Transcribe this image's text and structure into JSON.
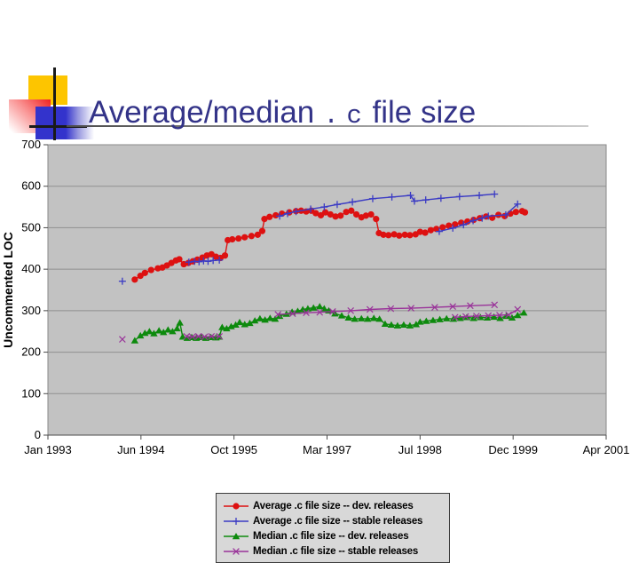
{
  "slide": {
    "title": {
      "part1": "Average/median",
      "part2": ".c",
      "part3": "file size"
    },
    "title_color": "#333388"
  },
  "chart": {
    "ylabel": "Uncommented LOC",
    "y_ticks": [
      "0",
      "100",
      "200",
      "300",
      "400",
      "500",
      "600",
      "700"
    ],
    "x_ticks": [
      "Jan 1993",
      "Jun 1994",
      "Oct 1995",
      "Mar 1997",
      "Jul 1998",
      "Dec 1999",
      "Apr 2001"
    ],
    "plot_bg": "#c2c2c2",
    "grid_color": "#8f8f8f",
    "border_color": "#8a8a8a",
    "axis_color": "#4a4a4a",
    "legend": {
      "items": [
        {
          "label": "Average .c file size -- dev. releases",
          "color": "#dd1111",
          "marker": "circle"
        },
        {
          "label": "Average .c file size -- stable releases",
          "color": "#3b3bc4",
          "marker": "plus"
        },
        {
          "label": "Median .c file size -- dev. releases",
          "color": "#0d8a0d",
          "marker": "triangle"
        },
        {
          "label": "Median .c file size -- stable releases",
          "color": "#993399",
          "marker": "x"
        }
      ]
    }
  },
  "chart_data": {
    "type": "line",
    "x_axis": {
      "unit": "months since Jan 1993",
      "min": 0,
      "max": 99,
      "tick_labels": [
        "Jan 1993",
        "Jun 1994",
        "Oct 1995",
        "Mar 1997",
        "Jul 1998",
        "Dec 1999",
        "Apr 2001"
      ]
    },
    "y_axis": {
      "label": "Uncommented LOC",
      "min": 0,
      "max": 700,
      "grid_step": 100
    },
    "series": [
      {
        "name": "Average .c file size -- dev. releases",
        "color": "#dd1111",
        "marker": "circle",
        "segments": [
          [
            [
              15.4,
              375
            ],
            [
              16.4,
              384
            ],
            [
              17.2,
              391
            ],
            [
              18.3,
              398
            ],
            [
              19.5,
              402
            ],
            [
              20.3,
              404
            ],
            [
              21.1,
              409
            ],
            [
              21.9,
              415
            ],
            [
              22.7,
              421
            ],
            [
              23.3,
              424
            ],
            [
              24.1,
              412
            ],
            [
              24.9,
              415
            ],
            [
              25.7,
              419
            ],
            [
              26.5,
              423
            ],
            [
              27.4,
              428
            ],
            [
              28.2,
              433
            ],
            [
              29.0,
              436
            ],
            [
              29.8,
              430
            ],
            [
              30.6,
              427
            ],
            [
              31.4,
              433
            ],
            [
              31.9,
              470
            ],
            [
              32.7,
              472
            ],
            [
              33.8,
              474
            ],
            [
              34.9,
              477
            ],
            [
              36.1,
              480
            ],
            [
              37.2,
              483
            ],
            [
              38.0,
              492
            ],
            [
              38.4,
              521
            ],
            [
              39.3,
              526
            ],
            [
              40.4,
              530
            ],
            [
              41.5,
              534
            ],
            [
              42.8,
              537
            ],
            [
              44.0,
              540
            ],
            [
              44.9,
              541
            ],
            [
              45.8,
              539
            ],
            [
              46.7,
              541
            ],
            [
              47.5,
              535
            ],
            [
              48.4,
              530
            ],
            [
              49.2,
              537
            ],
            [
              50.1,
              532
            ],
            [
              51.0,
              527
            ],
            [
              51.9,
              529
            ],
            [
              52.9,
              538
            ],
            [
              53.8,
              541
            ],
            [
              54.7,
              532
            ],
            [
              55.6,
              525
            ],
            [
              56.4,
              529
            ],
            [
              57.3,
              532
            ],
            [
              58.2,
              521
            ],
            [
              58.7,
              487
            ],
            [
              59.5,
              483
            ],
            [
              60.4,
              482
            ],
            [
              61.4,
              484
            ],
            [
              62.3,
              481
            ],
            [
              63.3,
              483
            ],
            [
              64.2,
              482
            ],
            [
              65.2,
              484
            ],
            [
              66.0,
              490
            ],
            [
              66.9,
              488
            ],
            [
              67.9,
              494
            ],
            [
              68.9,
              497
            ],
            [
              70.0,
              501
            ],
            [
              71.1,
              505
            ],
            [
              72.2,
              508
            ],
            [
              73.3,
              512
            ],
            [
              74.4,
              515
            ],
            [
              75.5,
              519
            ],
            [
              76.6,
              523
            ],
            [
              77.7,
              527
            ],
            [
              78.8,
              524
            ],
            [
              79.9,
              531
            ],
            [
              81.0,
              528
            ],
            [
              82.0,
              534
            ],
            [
              83.0,
              538
            ],
            [
              84.1,
              540
            ],
            [
              84.6,
              537
            ]
          ]
        ]
      },
      {
        "name": "Average .c file size -- stable releases",
        "color": "#3b3bc4",
        "marker": "plus",
        "segments": [
          [
            [
              13.2,
              371
            ]
          ],
          [
            [
              25.0,
              417
            ],
            [
              26.0,
              419
            ],
            [
              26.8,
              418
            ],
            [
              27.6,
              420
            ],
            [
              28.4,
              419
            ],
            [
              29.3,
              421
            ],
            [
              30.4,
              422
            ]
          ],
          [
            [
              41.1,
              528
            ],
            [
              42.5,
              534
            ],
            [
              44.0,
              539
            ],
            [
              46.6,
              545
            ],
            [
              49.0,
              550
            ],
            [
              51.3,
              556
            ],
            [
              54.0,
              562
            ],
            [
              57.6,
              570
            ],
            [
              61.0,
              574
            ],
            [
              64.3,
              578
            ],
            [
              65.0,
              564
            ],
            [
              67.0,
              567
            ],
            [
              69.7,
              571
            ],
            [
              73.0,
              575
            ],
            [
              76.5,
              578
            ],
            [
              79.2,
              581
            ]
          ],
          [
            [
              69.4,
              491
            ],
            [
              71.8,
              499
            ],
            [
              73.7,
              507
            ],
            [
              75.4,
              517
            ],
            [
              77.0,
              523
            ],
            [
              78.1,
              528
            ],
            [
              81.2,
              531
            ],
            [
              83.3,
              557
            ]
          ]
        ]
      },
      {
        "name": "Median .c file size -- dev. releases",
        "color": "#0d8a0d",
        "marker": "triangle",
        "segments": [
          [
            [
              15.4,
              228
            ],
            [
              16.4,
              240
            ],
            [
              17.2,
              246
            ],
            [
              18.0,
              250
            ],
            [
              18.8,
              245
            ],
            [
              19.7,
              252
            ],
            [
              20.5,
              248
            ],
            [
              21.3,
              254
            ],
            [
              22.1,
              250
            ],
            [
              22.9,
              257
            ],
            [
              23.4,
              271
            ],
            [
              23.9,
              237
            ],
            [
              24.7,
              234
            ],
            [
              25.5,
              236
            ],
            [
              26.3,
              234
            ],
            [
              27.2,
              236
            ],
            [
              28.0,
              234
            ],
            [
              28.9,
              236
            ],
            [
              29.8,
              235
            ],
            [
              30.4,
              237
            ],
            [
              30.9,
              260
            ],
            [
              31.7,
              257
            ],
            [
              32.5,
              262
            ],
            [
              33.3,
              266
            ],
            [
              34.0,
              272
            ],
            [
              34.9,
              267
            ],
            [
              35.8,
              270
            ],
            [
              36.7,
              276
            ],
            [
              37.6,
              281
            ],
            [
              38.5,
              278
            ],
            [
              39.4,
              282
            ],
            [
              40.3,
              280
            ],
            [
              41.1,
              287
            ],
            [
              42.3,
              292
            ],
            [
              43.3,
              297
            ],
            [
              44.3,
              299
            ],
            [
              45.2,
              303
            ],
            [
              46.1,
              305
            ],
            [
              47.1,
              307
            ],
            [
              48.2,
              310
            ],
            [
              49.0,
              305
            ],
            [
              49.8,
              300
            ],
            [
              50.9,
              293
            ],
            [
              52.1,
              288
            ],
            [
              53.3,
              283
            ],
            [
              54.4,
              280
            ],
            [
              55.6,
              281
            ],
            [
              56.7,
              280
            ],
            [
              57.8,
              282
            ],
            [
              58.8,
              280
            ],
            [
              59.8,
              268
            ],
            [
              60.9,
              266
            ],
            [
              62.0,
              264
            ],
            [
              63.1,
              266
            ],
            [
              64.2,
              264
            ],
            [
              65.3,
              267
            ],
            [
              66.0,
              273
            ],
            [
              67.1,
              275
            ],
            [
              68.3,
              277
            ],
            [
              69.5,
              279
            ],
            [
              70.7,
              281
            ],
            [
              71.9,
              280
            ],
            [
              73.1,
              282
            ],
            [
              74.3,
              284
            ],
            [
              75.5,
              282
            ],
            [
              76.7,
              284
            ],
            [
              77.9,
              283
            ],
            [
              79.1,
              285
            ],
            [
              80.2,
              282
            ],
            [
              81.3,
              287
            ],
            [
              82.3,
              283
            ],
            [
              83.3,
              289
            ],
            [
              84.4,
              295
            ]
          ]
        ]
      },
      {
        "name": "Median .c file size -- stable releases",
        "color": "#993399",
        "marker": "x",
        "segments": [
          [
            [
              13.2,
              231
            ]
          ],
          [
            [
              24.6,
              238
            ],
            [
              25.6,
              237
            ],
            [
              26.7,
              238
            ],
            [
              27.8,
              237
            ],
            [
              29.0,
              238
            ],
            [
              30.4,
              238
            ]
          ],
          [
            [
              40.8,
              291
            ],
            [
              43.4,
              293
            ],
            [
              45.8,
              295
            ],
            [
              48.2,
              296
            ],
            [
              50.5,
              298
            ],
            [
              53.7,
              300
            ],
            [
              57.1,
              303
            ],
            [
              60.8,
              305
            ],
            [
              64.4,
              306
            ],
            [
              68.6,
              308
            ],
            [
              71.8,
              310
            ],
            [
              74.9,
              312
            ],
            [
              79.2,
              314
            ]
          ],
          [
            [
              72.2,
              284
            ],
            [
              74.1,
              286
            ],
            [
              76.0,
              287
            ],
            [
              78.1,
              288
            ],
            [
              80.1,
              289
            ],
            [
              81.7,
              290
            ],
            [
              83.3,
              303
            ]
          ]
        ]
      }
    ]
  }
}
